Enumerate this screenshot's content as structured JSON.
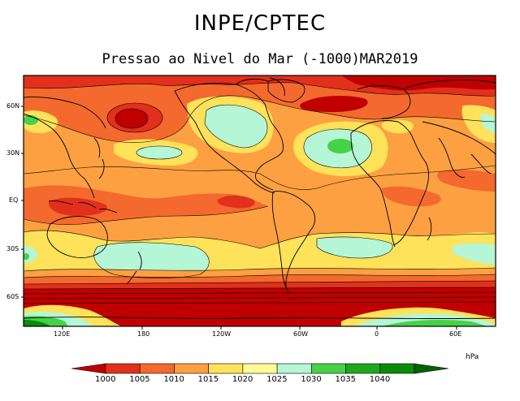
{
  "header": {
    "title": "INPE/CPTEC",
    "subtitle": "Pressao ao Nivel do Mar (-1000)MAR2019"
  },
  "map": {
    "lat_ticks": [
      "60N",
      "30N",
      "EQ",
      "30S",
      "60S"
    ],
    "lon_ticks": [
      "120E",
      "180",
      "120W",
      "60W",
      "0",
      "60E"
    ]
  },
  "colorbar": {
    "unit": "hPa",
    "levels": [
      "1000",
      "1005",
      "1010",
      "1015",
      "1020",
      "1025",
      "1030",
      "1035",
      "1040"
    ],
    "colors": [
      "#c00000",
      "#e2301c",
      "#f4692e",
      "#fca042",
      "#fde25a",
      "#fdfb96",
      "#b4f6d6",
      "#46d246",
      "#1ea81e",
      "#0b8a0b",
      "#006400"
    ]
  }
}
